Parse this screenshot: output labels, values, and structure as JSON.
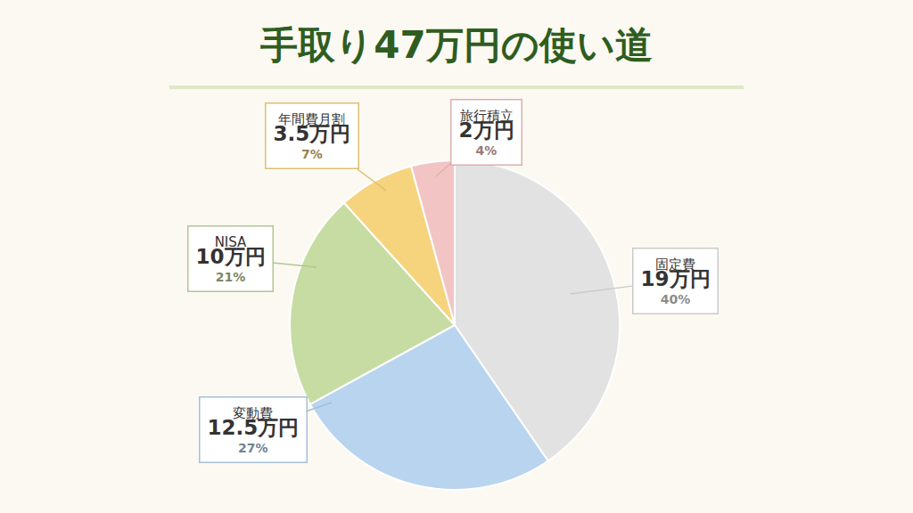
{
  "chart_data": {
    "type": "pie",
    "title": "手取り47万円の使い道",
    "categories": [
      "固定費",
      "変動費",
      "NISA",
      "年間費月割",
      "旅行積立"
    ],
    "values": [
      19,
      12.5,
      10,
      3.5,
      2
    ],
    "value_labels": [
      "19万円",
      "12.5万円",
      "10万円",
      "3.5万円",
      "2万円"
    ],
    "percentages": [
      40,
      27,
      21,
      7,
      4
    ],
    "percentage_labels": [
      "40%",
      "27%",
      "21%",
      "7%",
      "4%"
    ],
    "colors": [
      "#e2e2e2",
      "#b8d4ef",
      "#c6dca2",
      "#f6d47e",
      "#f3c4c4"
    ],
    "data_labels": true
  }
}
